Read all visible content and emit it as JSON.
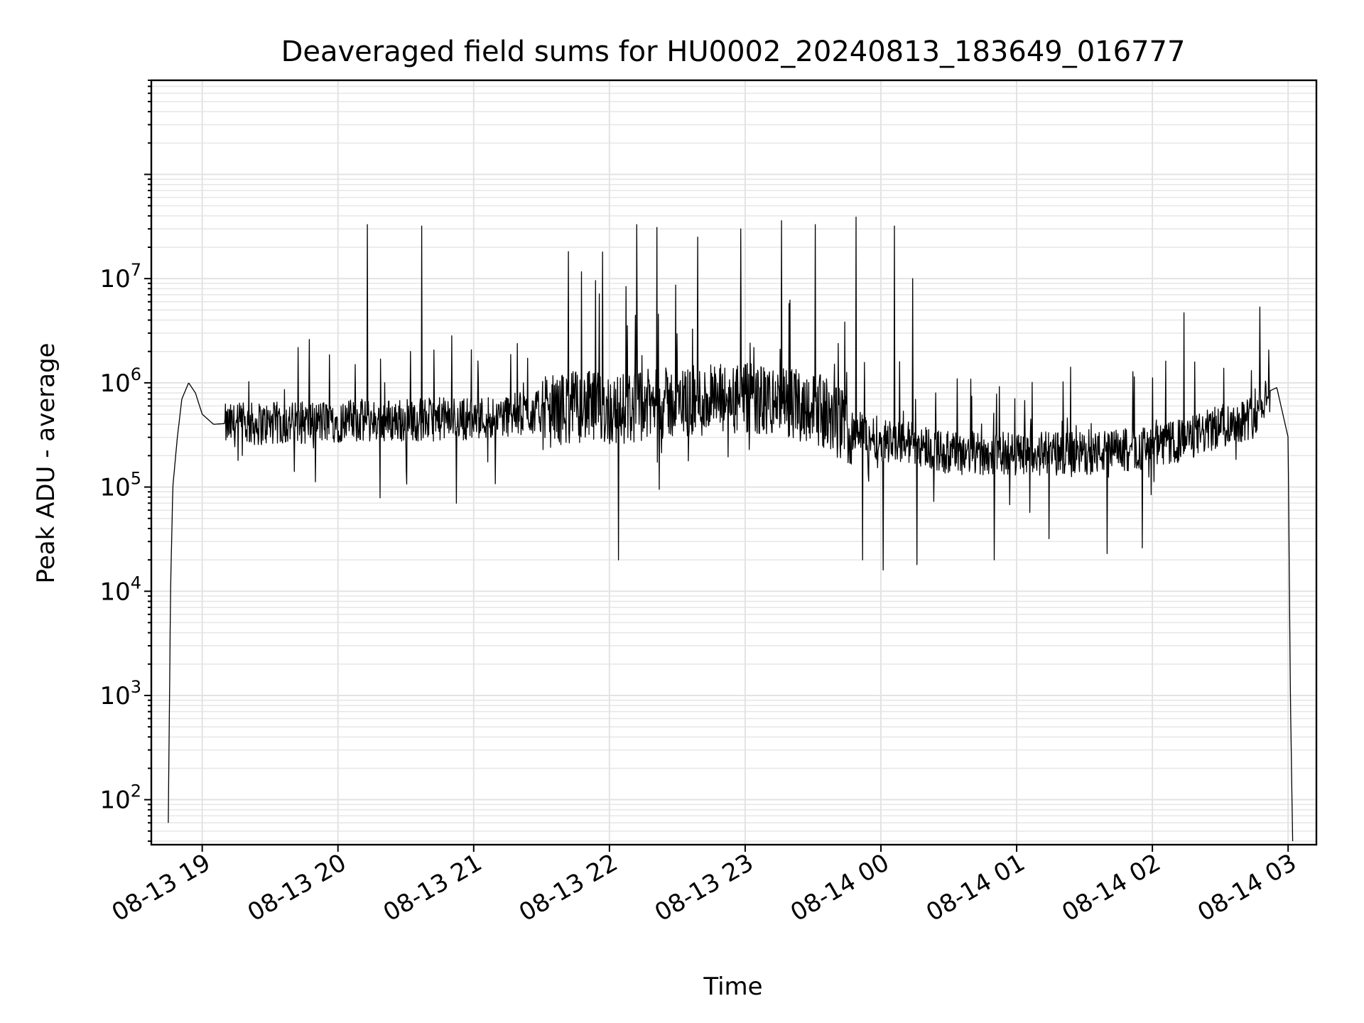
{
  "chart_data": {
    "type": "line",
    "title": "Deaveraged field sums for HU0002_20240813_183649_016777",
    "xlabel": "Time",
    "ylabel": "Peak ADU - average",
    "yscale": "log",
    "ylim": [
      37,
      800000000
    ],
    "xlim": [
      "2024-08-13 18:37:30",
      "2024-08-14 03:12:30"
    ],
    "xticks": [
      "08-13 19",
      "08-13 20",
      "08-13 21",
      "08-13 22",
      "08-13 23",
      "08-14 00",
      "08-14 01",
      "08-14 02",
      "08-14 03"
    ],
    "yticks": [
      {
        "base": "10",
        "exp": "2",
        "value": 100
      },
      {
        "base": "10",
        "exp": "3",
        "value": 1000
      },
      {
        "base": "10",
        "exp": "4",
        "value": 10000
      },
      {
        "base": "10",
        "exp": "5",
        "value": 100000
      },
      {
        "base": "10",
        "exp": "6",
        "value": 1000000
      },
      {
        "base": "10",
        "exp": "7",
        "value": 10000000
      }
    ],
    "grid": true,
    "line_color": "#000000",
    "series": [
      {
        "x": [
          "2024-08-13 18:45",
          "2024-08-13 18:46",
          "2024-08-13 18:47",
          "2024-08-13 18:49",
          "2024-08-13 18:51",
          "2024-08-13 18:54",
          "2024-08-13 18:57",
          "2024-08-13 19:00",
          "2024-08-13 19:05",
          "2024-08-13 19:20",
          "2024-08-13 19:40",
          "2024-08-13 20:00",
          "2024-08-13 20:30",
          "2024-08-13 21:00",
          "2024-08-13 21:30",
          "2024-08-13 21:45",
          "2024-08-13 22:00",
          "2024-08-13 22:30",
          "2024-08-13 23:00",
          "2024-08-13 23:30",
          "2024-08-13 23:45",
          "2024-08-14 00:00",
          "2024-08-14 00:15",
          "2024-08-14 00:30",
          "2024-08-14 01:00",
          "2024-08-14 01:30",
          "2024-08-14 02:00",
          "2024-08-14 02:15",
          "2024-08-14 02:30",
          "2024-08-14 02:45",
          "2024-08-14 02:50",
          "2024-08-14 02:55",
          "2024-08-14 03:00",
          "2024-08-14 03:01",
          "2024-08-14 03:02"
        ],
        "y": [
          60,
          10000,
          100000,
          300000,
          700000,
          1000000,
          800000,
          500000,
          400000,
          420000,
          430000,
          450000,
          460000,
          480000,
          550000,
          650000,
          600000,
          700000,
          750000,
          650000,
          400000,
          300000,
          280000,
          220000,
          220000,
          220000,
          250000,
          300000,
          400000,
          500000,
          800000,
          900000,
          300000,
          1000,
          40
        ]
      }
    ],
    "spikes": [
      {
        "x": "2024-08-13 20:13",
        "y": 33000000
      },
      {
        "x": "2024-08-13 20:37",
        "y": 32000000
      },
      {
        "x": "2024-08-13 21:57",
        "y": 18000000
      },
      {
        "x": "2024-08-13 22:12",
        "y": 33000000
      },
      {
        "x": "2024-08-13 22:21",
        "y": 31000000
      },
      {
        "x": "2024-08-13 22:39",
        "y": 25000000
      },
      {
        "x": "2024-08-13 22:58",
        "y": 30000000
      },
      {
        "x": "2024-08-13 23:16",
        "y": 36000000
      },
      {
        "x": "2024-08-13 23:31",
        "y": 33000000
      },
      {
        "x": "2024-08-13 23:49",
        "y": 39000000
      },
      {
        "x": "2024-08-14 00:06",
        "y": 32000000
      },
      {
        "x": "2024-08-14 00:14",
        "y": 10000000
      },
      {
        "x": "2024-08-14 02:14",
        "y": 4700000
      }
    ],
    "dips": [
      {
        "x": "2024-08-13 22:04",
        "y": 20000
      },
      {
        "x": "2024-08-13 23:52",
        "y": 20000
      },
      {
        "x": "2024-08-14 00:01",
        "y": 16000
      },
      {
        "x": "2024-08-14 00:16",
        "y": 18000
      },
      {
        "x": "2024-08-14 00:50",
        "y": 20000
      },
      {
        "x": "2024-08-14 01:40",
        "y": 23000
      }
    ]
  }
}
